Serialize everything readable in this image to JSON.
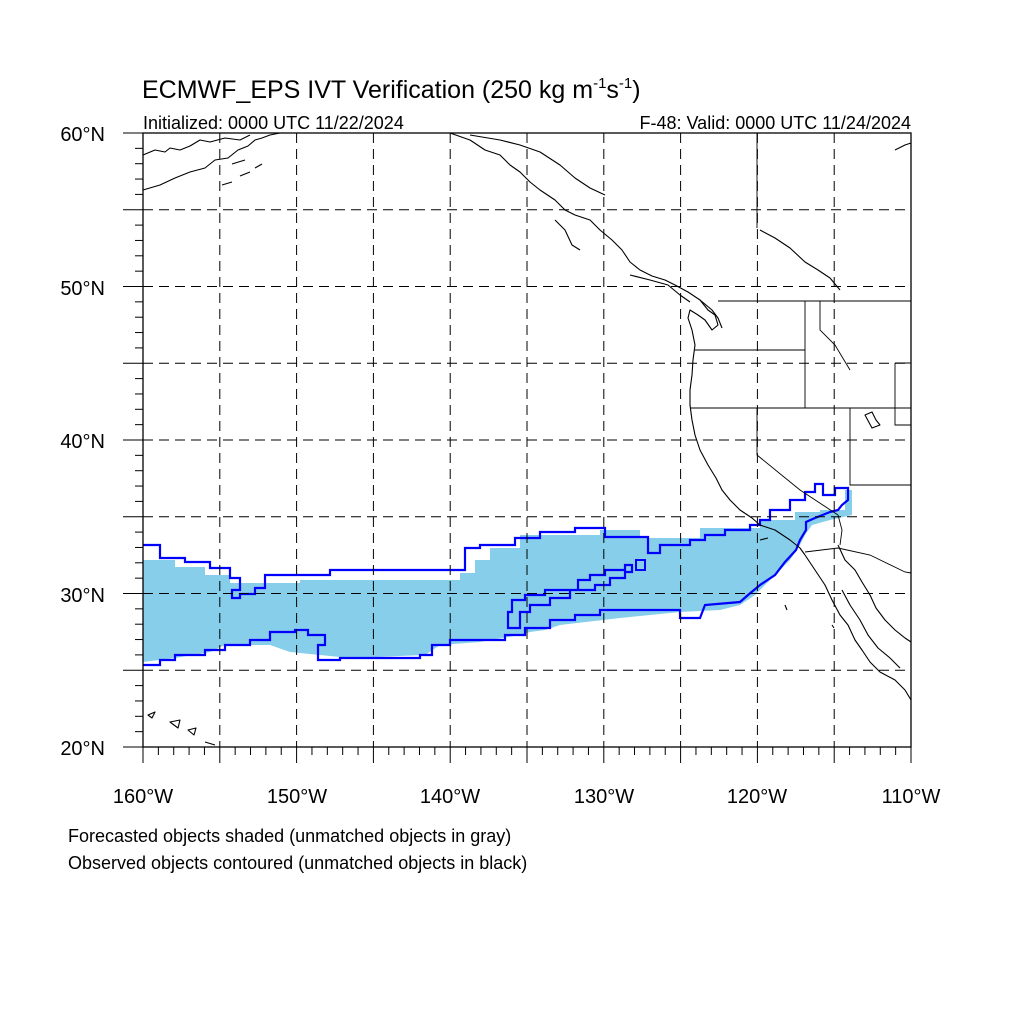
{
  "title": {
    "main": "ECMWF_EPS IVT Verification (250 kg m",
    "sup1": "-1",
    "mid": "s",
    "sup2": "-1",
    "end": ")"
  },
  "initialized_label": "Initialized: 0000 UTC 11/22/2024",
  "valid_label": "F-48: Valid: 0000 UTC 11/24/2024",
  "axes": {
    "lat_labels": [
      "60°N",
      "50°N",
      "40°N",
      "30°N",
      "20°N"
    ],
    "lon_labels": [
      "160°W",
      "150°W",
      "140°W",
      "130°W",
      "120°W",
      "110°W"
    ],
    "lat_range": [
      20,
      60
    ],
    "lon_range": [
      -160,
      -110
    ],
    "grid_step_deg": 5,
    "grid": true
  },
  "legend_notes": [
    "Forecasted objects shaded (unmatched objects in gray)",
    "Observed objects contoured (unmatched objects in black)"
  ],
  "colors": {
    "forecast_fill": "#87ceeb",
    "observed_contour": "#0000ff",
    "coastline": "#000000",
    "grid": "#000000"
  }
}
